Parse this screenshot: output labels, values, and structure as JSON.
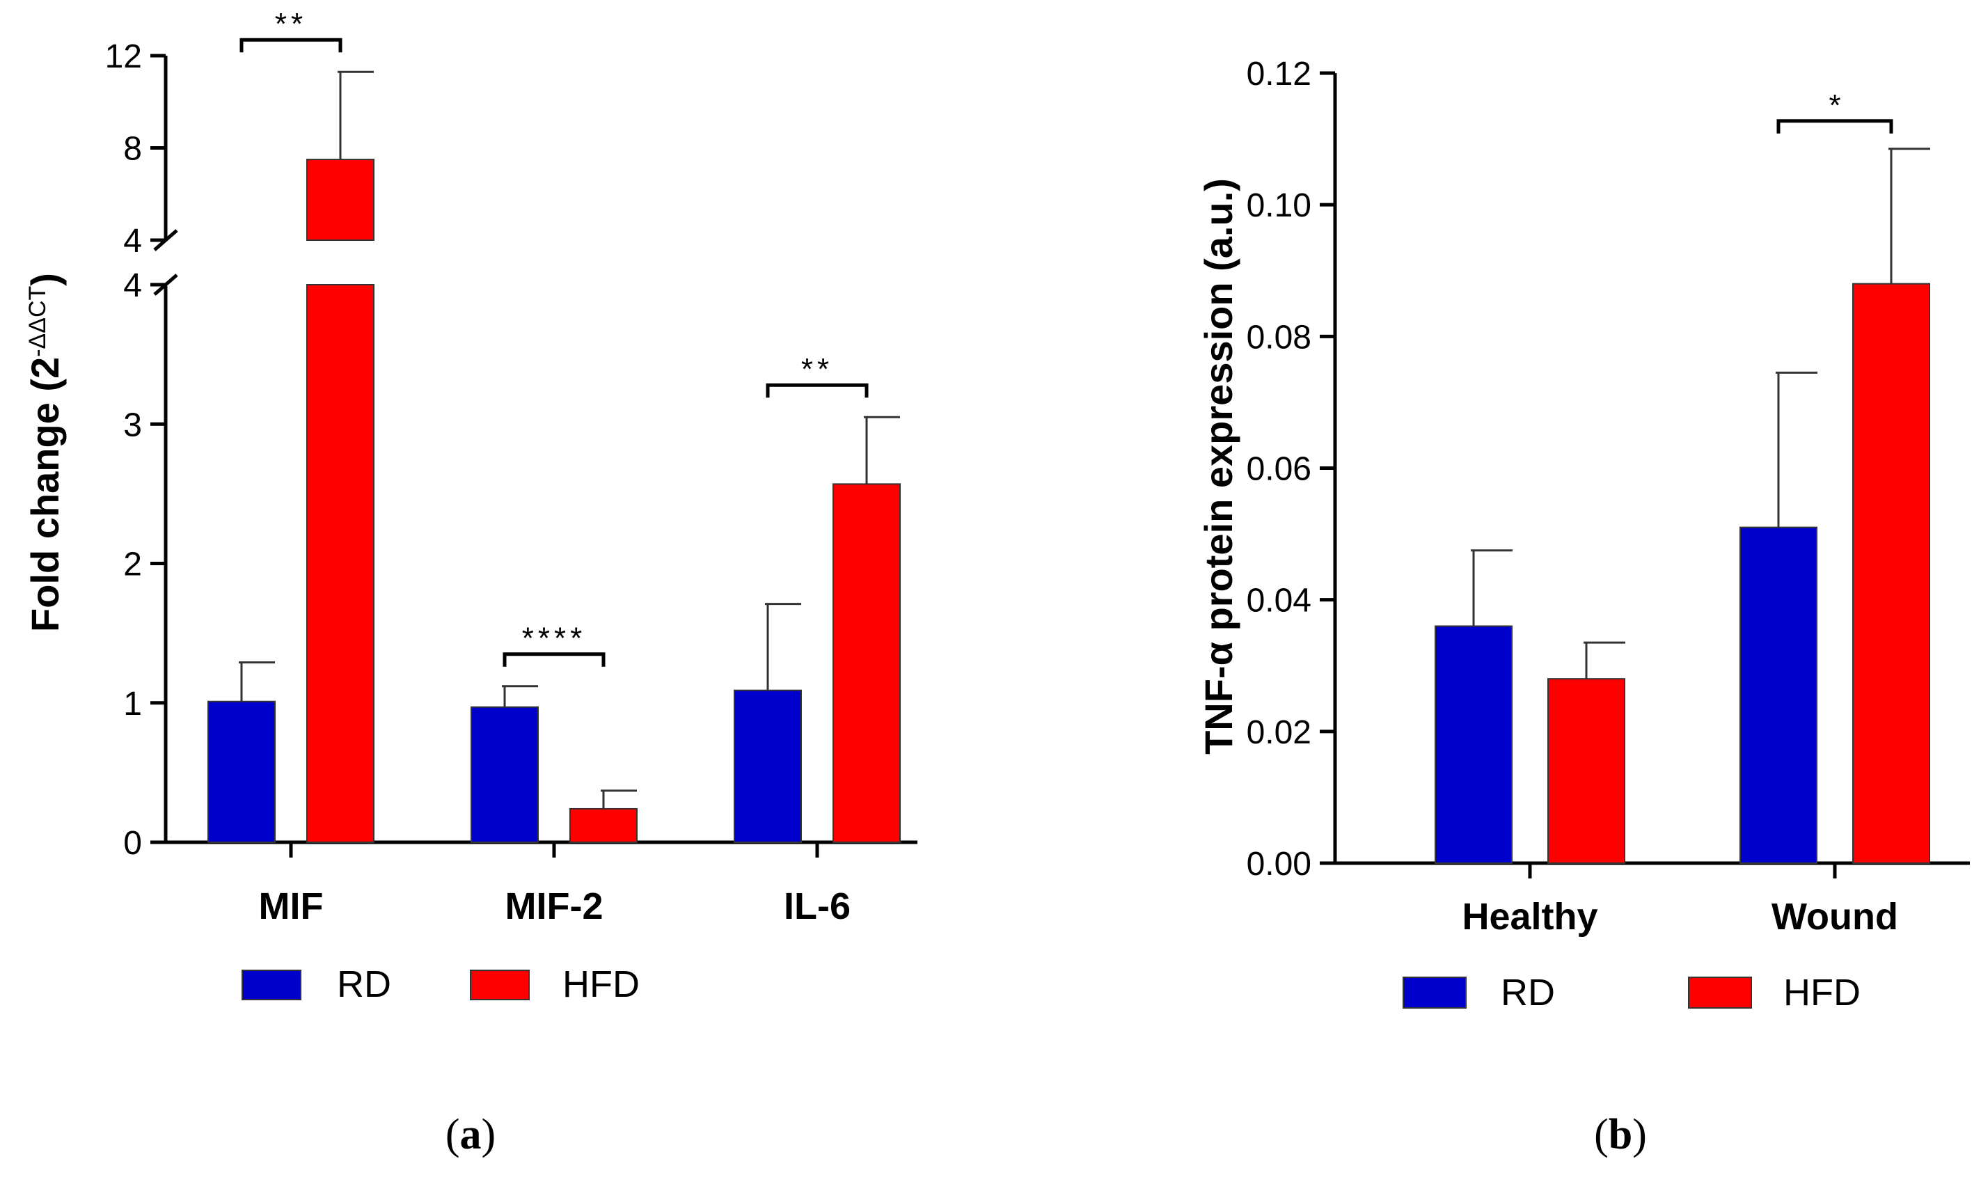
{
  "chart_data": [
    {
      "type": "bar",
      "panel": "(a)",
      "panel_letter": "a",
      "ylabel_main": "Fold change (2",
      "ylabel_sup": "-ΔΔCT",
      "ylabel_close": ")",
      "y_break": {
        "lower_range": [
          0,
          4
        ],
        "upper_range": [
          4,
          12
        ]
      },
      "yticks_lower": [
        "0",
        "1",
        "2",
        "3",
        "4"
      ],
      "yticks_upper": [
        "4",
        "8",
        "12"
      ],
      "categories": [
        "MIF",
        "MIF-2",
        "IL-6"
      ],
      "series": [
        {
          "name": "RD",
          "color": "#0000cc",
          "values": [
            1.01,
            0.97,
            1.09
          ],
          "errors": [
            0.28,
            0.15,
            0.62
          ]
        },
        {
          "name": "HFD",
          "color": "#ff0000",
          "values": [
            7.5,
            0.24,
            2.57
          ],
          "errors": [
            3.8,
            0.13,
            0.48
          ]
        }
      ],
      "significance": [
        {
          "category": "MIF",
          "label": "**"
        },
        {
          "category": "MIF-2",
          "label": "****"
        },
        {
          "category": "IL-6",
          "label": "**"
        }
      ],
      "legend": [
        "RD",
        "HFD"
      ]
    },
    {
      "type": "bar",
      "panel": "(b)",
      "panel_letter": "b",
      "ylabel": "TNF-α protein expression (a.u.)",
      "ylim": [
        0,
        0.12
      ],
      "yticks": [
        "0.00",
        "0.02",
        "0.04",
        "0.06",
        "0.08",
        "0.10",
        "0.12"
      ],
      "categories": [
        "Healthy",
        "Wound"
      ],
      "series": [
        {
          "name": "RD",
          "color": "#0000cc",
          "values": [
            0.036,
            0.051
          ],
          "errors": [
            0.0115,
            0.0235
          ]
        },
        {
          "name": "HFD",
          "color": "#ff0000",
          "values": [
            0.028,
            0.088
          ],
          "errors": [
            0.0055,
            0.0205
          ]
        }
      ],
      "significance": [
        {
          "category": "Wound",
          "label": "*"
        }
      ],
      "legend": [
        "RD",
        "HFD"
      ]
    }
  ]
}
